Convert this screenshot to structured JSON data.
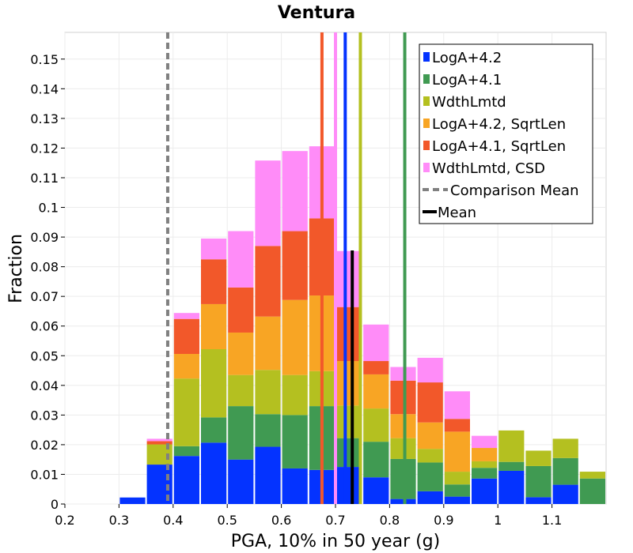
{
  "chart_data": {
    "type": "bar",
    "stacked": true,
    "title": "Ventura",
    "xlabel": "PGA, 10% in 50 year (g)",
    "ylabel": "Fraction",
    "xlim": [
      0.2,
      1.2
    ],
    "ylim": [
      0,
      0.159
    ],
    "grid": true,
    "legend_position": "top-right",
    "x_ticks": [
      {
        "value": 0.2,
        "label": "0.2"
      },
      {
        "value": 0.3,
        "label": "0.3"
      },
      {
        "value": 0.4,
        "label": "0.4"
      },
      {
        "value": 0.5,
        "label": "0.5"
      },
      {
        "value": 0.6,
        "label": "0.6"
      },
      {
        "value": 0.7,
        "label": "0.7"
      },
      {
        "value": 0.8,
        "label": "0.8"
      },
      {
        "value": 0.9,
        "label": "0.9"
      },
      {
        "value": 1.0,
        "label": "1"
      },
      {
        "value": 1.1,
        "label": "1.1"
      }
    ],
    "y_ticks": [
      {
        "value": 0,
        "label": "0"
      },
      {
        "value": 0.01,
        "label": "0.01"
      },
      {
        "value": 0.02,
        "label": "0.02"
      },
      {
        "value": 0.03,
        "label": "0.03"
      },
      {
        "value": 0.04,
        "label": "0.04"
      },
      {
        "value": 0.05,
        "label": "0.05"
      },
      {
        "value": 0.06,
        "label": "0.06"
      },
      {
        "value": 0.07,
        "label": "0.07"
      },
      {
        "value": 0.08,
        "label": "0.08"
      },
      {
        "value": 0.09,
        "label": "0.09"
      },
      {
        "value": 0.1,
        "label": "0.1"
      },
      {
        "value": 0.11,
        "label": "0.11"
      },
      {
        "value": 0.12,
        "label": "0.12"
      },
      {
        "value": 0.13,
        "label": "0.13"
      },
      {
        "value": 0.14,
        "label": "0.14"
      },
      {
        "value": 0.15,
        "label": "0.15"
      }
    ],
    "bin_width": 0.05,
    "bin_centers": [
      0.225,
      0.275,
      0.325,
      0.375,
      0.425,
      0.475,
      0.525,
      0.575,
      0.625,
      0.675,
      0.725,
      0.775,
      0.825,
      0.875,
      0.925,
      0.975,
      1.025,
      1.075,
      1.125,
      1.175
    ],
    "series": [
      {
        "name": "LogA+4.2",
        "color": "#0433ff",
        "values": [
          0,
          0,
          0.0022,
          0.0133,
          0.0162,
          0.0207,
          0.015,
          0.0193,
          0.012,
          0.0115,
          0.0125,
          0.009,
          0.0017,
          0.0043,
          0.0025,
          0.0086,
          0.0112,
          0.0023,
          0.0065,
          0
        ]
      },
      {
        "name": "LogA+4.1",
        "color": "#409a52",
        "values": [
          0,
          0,
          0,
          0,
          0.0033,
          0.0085,
          0.018,
          0.011,
          0.018,
          0.0215,
          0.0097,
          0.012,
          0.0135,
          0.0097,
          0.0041,
          0.0036,
          0.003,
          0.0105,
          0.009,
          0.0086
        ]
      },
      {
        "name": "WdthLmtd",
        "color": "#b4c020",
        "values": [
          0,
          0,
          0,
          0.0068,
          0.0228,
          0.023,
          0.0105,
          0.0149,
          0.0135,
          0.0118,
          0.011,
          0.0112,
          0.007,
          0.0046,
          0.0043,
          0.0022,
          0.0106,
          0.0052,
          0.0065,
          0.0023
        ]
      },
      {
        "name": "LogA+4.2, SqrtLen",
        "color": "#f8a524",
        "values": [
          0,
          0,
          0,
          0,
          0.0083,
          0.0152,
          0.0143,
          0.018,
          0.0253,
          0.0255,
          0.015,
          0.0115,
          0.0081,
          0.0089,
          0.0135,
          0.0045,
          0,
          0,
          0,
          0
        ]
      },
      {
        "name": "LogA+4.1, SqrtLen",
        "color": "#f2582a",
        "values": [
          0,
          0,
          0,
          0.0011,
          0.0118,
          0.0151,
          0.0152,
          0.0238,
          0.0232,
          0.026,
          0.0182,
          0.0045,
          0.0113,
          0.0135,
          0.0043,
          0,
          0,
          0,
          0,
          0
        ]
      },
      {
        "name": "WdthLmtd, CSD",
        "color": "#ff8cf8",
        "values": [
          0,
          0,
          0,
          0.0008,
          0.002,
          0.007,
          0.019,
          0.0288,
          0.027,
          0.0243,
          0.0189,
          0.0123,
          0.0046,
          0.0083,
          0.0093,
          0.0041,
          0,
          0,
          0,
          0
        ]
      }
    ],
    "vertical_lines": [
      {
        "series": "LogA+4.2",
        "x": 0.718,
        "color": "#0433ff",
        "style": "solid",
        "top": "full"
      },
      {
        "series": "LogA+4.1",
        "x": 0.828,
        "color": "#409a52",
        "style": "solid",
        "top": "full"
      },
      {
        "series": "WdthLmtd",
        "x": 0.746,
        "color": "#b4c020",
        "style": "solid",
        "top": "full"
      },
      {
        "series": "LogA+4.2, SqrtLen",
        "x": 0.7,
        "color": "#f8a524",
        "style": "solid",
        "top": "full"
      },
      {
        "series": "LogA+4.1, SqrtLen",
        "x": 0.675,
        "color": "#f2582a",
        "style": "solid",
        "top": "full"
      },
      {
        "series": "WdthLmtd, CSD",
        "x": 0.7,
        "color": "#ff8cf8",
        "style": "solid",
        "top": "full"
      },
      {
        "series": "Comparison Mean",
        "x": 0.39,
        "color": "#808080",
        "style": "dashed",
        "top": "full"
      },
      {
        "series": "Mean",
        "x": 0.731,
        "color": "#000000",
        "style": "solid",
        "top": 0.0855
      }
    ],
    "legend": [
      {
        "label": "LogA+4.2",
        "color": "#0433ff",
        "kind": "box"
      },
      {
        "label": "LogA+4.1",
        "color": "#409a52",
        "kind": "box"
      },
      {
        "label": "WdthLmtd",
        "color": "#b4c020",
        "kind": "box"
      },
      {
        "label": "LogA+4.2, SqrtLen",
        "color": "#f8a524",
        "kind": "box"
      },
      {
        "label": "LogA+4.1, SqrtLen",
        "color": "#f2582a",
        "kind": "box"
      },
      {
        "label": "WdthLmtd, CSD",
        "color": "#ff8cf8",
        "kind": "box"
      },
      {
        "label": "Comparison Mean",
        "color": "#808080",
        "kind": "dash"
      },
      {
        "label": "Mean",
        "color": "#000000",
        "kind": "line"
      }
    ]
  }
}
